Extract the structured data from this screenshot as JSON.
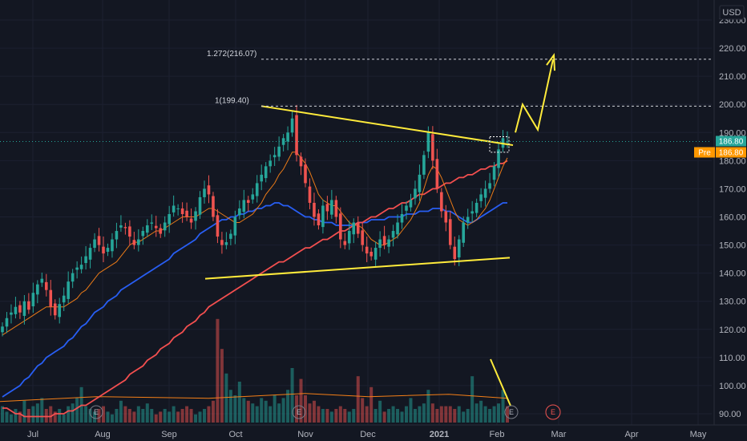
{
  "chart_data": {
    "type": "candlestick",
    "currency": "USD",
    "y_ticks": [
      "90.00",
      "100.00",
      "110.00",
      "120.00",
      "130.00",
      "140.00",
      "150.00",
      "160.00",
      "170.00",
      "180.00",
      "190.00",
      "200.00",
      "210.00",
      "220.00",
      "230.00"
    ],
    "ylim": [
      88,
      232
    ],
    "x_labels": [
      "Jul",
      "Aug",
      "Sep",
      "Oct",
      "Nov",
      "Dec",
      "2021",
      "Feb",
      "Mar",
      "Apr",
      "May"
    ],
    "last_price": "186.80",
    "pre_label": "Pre",
    "pre_price": "186.80",
    "fib_levels": [
      {
        "label": "1(199.40)",
        "value": 199.4
      },
      {
        "label": "1.272(216.07)",
        "value": 216.07
      }
    ],
    "earnings_marker": "E",
    "price_series": {
      "name": "price",
      "close": [
        121,
        124,
        126,
        128,
        126,
        130,
        127,
        133,
        136,
        138,
        134,
        128,
        125,
        129,
        132,
        137,
        140,
        142,
        143,
        146,
        149,
        152,
        150,
        147,
        149,
        152,
        155,
        157,
        156,
        153,
        150,
        152,
        155,
        157,
        158,
        156,
        154,
        158,
        161,
        164,
        163,
        161,
        160,
        158,
        162,
        167,
        170,
        168,
        160,
        153,
        150,
        151,
        154,
        160,
        163,
        166,
        165,
        168,
        172,
        175,
        178,
        180,
        182,
        185,
        188,
        190,
        195,
        182,
        178,
        172,
        165,
        160,
        157,
        164,
        162,
        166,
        160,
        152,
        150,
        155,
        158,
        154,
        150,
        147,
        146,
        149,
        152,
        150,
        152,
        155,
        158,
        161,
        164,
        166,
        170,
        175,
        182,
        190,
        180,
        170,
        162,
        158,
        150,
        145,
        152,
        158,
        160,
        162,
        165,
        168,
        170,
        172,
        178,
        184,
        188,
        186.8
      ],
      "colors": {
        "up": "#26a69a",
        "down": "#ef5350"
      }
    },
    "moving_averages": [
      {
        "color": "#2962ff",
        "values": [
          96,
          97,
          98,
          99,
          100,
          102,
          103,
          105,
          107,
          108,
          110,
          111,
          112,
          113,
          114,
          116,
          117,
          119,
          121,
          122,
          124,
          126,
          127,
          128,
          130,
          131,
          132,
          134,
          135,
          136,
          137,
          138,
          139,
          140,
          141,
          142,
          143,
          144,
          145,
          147,
          148,
          149,
          150,
          151,
          152,
          154,
          155,
          156,
          157,
          158,
          159,
          159,
          160,
          160,
          161,
          161,
          162,
          162,
          163,
          163,
          164,
          164,
          165,
          165,
          164,
          164,
          163,
          162,
          161,
          160,
          160,
          159,
          159,
          158,
          158,
          158,
          157,
          157,
          157,
          157,
          157,
          158,
          158,
          158,
          159,
          159,
          159,
          159,
          160,
          160,
          160,
          160,
          161,
          161,
          161,
          162,
          162,
          162,
          163,
          163,
          163,
          162,
          162,
          161,
          160,
          159,
          158,
          158,
          159,
          160,
          161,
          162,
          163,
          164,
          165,
          165
        ]
      },
      {
        "color": "#ff5252",
        "values": [
          92,
          92,
          91,
          90,
          90,
          89,
          89,
          89,
          89,
          89,
          89,
          89,
          90,
          90,
          90,
          91,
          91,
          92,
          93,
          93,
          94,
          95,
          96,
          97,
          98,
          99,
          100,
          101,
          102,
          104,
          105,
          106,
          107,
          109,
          110,
          111,
          113,
          114,
          115,
          117,
          118,
          119,
          121,
          122,
          123,
          125,
          126,
          128,
          129,
          130,
          131,
          132,
          133,
          134,
          135,
          136,
          137,
          138,
          139,
          140,
          141,
          142,
          143,
          144,
          144,
          145,
          146,
          147,
          148,
          149,
          149,
          150,
          151,
          152,
          152,
          153,
          154,
          155,
          155,
          156,
          157,
          158,
          158,
          159,
          160,
          160,
          161,
          162,
          163,
          163,
          164,
          165,
          165,
          166,
          167,
          168,
          168,
          169,
          170,
          170,
          171,
          172,
          172,
          173,
          174,
          174,
          175,
          175,
          176,
          177,
          177,
          178,
          178,
          179,
          179,
          180
        ]
      },
      {
        "color": "#f57f17",
        "values": [
          118,
          119,
          120,
          121,
          122,
          123,
          124,
          125,
          126,
          127,
          128,
          128,
          128,
          128,
          128,
          129,
          130,
          131,
          133,
          134,
          136,
          138,
          140,
          141,
          142,
          143,
          144,
          146,
          148,
          150,
          151,
          151,
          152,
          153,
          154,
          155,
          155,
          156,
          157,
          158,
          159,
          160,
          160,
          160,
          160,
          161,
          162,
          163,
          163,
          162,
          161,
          160,
          159,
          158,
          158,
          159,
          160,
          161,
          163,
          165,
          168,
          170,
          172,
          175,
          177,
          180,
          183,
          183,
          181,
          179,
          176,
          172,
          168,
          166,
          165,
          164,
          164,
          162,
          160,
          158,
          157,
          157,
          156,
          154,
          152,
          151,
          150,
          150,
          151,
          152,
          153,
          155,
          157,
          159,
          162,
          165,
          170,
          175,
          178,
          177,
          174,
          170,
          166,
          162,
          159,
          158,
          157,
          158,
          159,
          161,
          163,
          166,
          170,
          174,
          178,
          181
        ]
      }
    ],
    "volume_series": {
      "name": "volume",
      "values": [
        0.6,
        0.4,
        0.3,
        0.5,
        0.4,
        0.8,
        0.5,
        0.6,
        0.7,
        0.9,
        0.5,
        0.6,
        0.4,
        0.5,
        0.3,
        0.6,
        0.7,
        0.9,
        1.3,
        0.6,
        0.5,
        0.4,
        0.5,
        0.6,
        0.4,
        0.3,
        0.5,
        0.8,
        0.6,
        0.5,
        0.4,
        0.6,
        0.5,
        0.7,
        0.5,
        0.3,
        0.4,
        0.5,
        0.4,
        0.6,
        0.4,
        0.5,
        0.6,
        0.5,
        0.3,
        0.4,
        0.5,
        0.6,
        0.8,
        3.8,
        2.7,
        1.8,
        1.2,
        1.0,
        1.5,
        0.9,
        0.8,
        0.7,
        0.6,
        0.9,
        0.8,
        0.6,
        1.0,
        0.7,
        0.9,
        1.2,
        2.0,
        1.0,
        1.6,
        1.0,
        0.7,
        0.8,
        0.6,
        0.5,
        0.5,
        0.4,
        0.5,
        0.6,
        0.5,
        0.4,
        0.5,
        1.7,
        0.9,
        0.6,
        1.3,
        0.5,
        0.8,
        0.4,
        0.5,
        0.6,
        0.5,
        0.4,
        0.6,
        0.9,
        0.5,
        0.6,
        0.7,
        1.2,
        0.7,
        0.5,
        0.6,
        0.6,
        0.6,
        0.5,
        0.6,
        0.4,
        0.5,
        1.7,
        0.7,
        0.8,
        0.6,
        0.5,
        0.6,
        0.7,
        1.2,
        0.6
      ]
    },
    "volume_ma": {
      "color": "#f57f17",
      "level": 0.95
    }
  }
}
